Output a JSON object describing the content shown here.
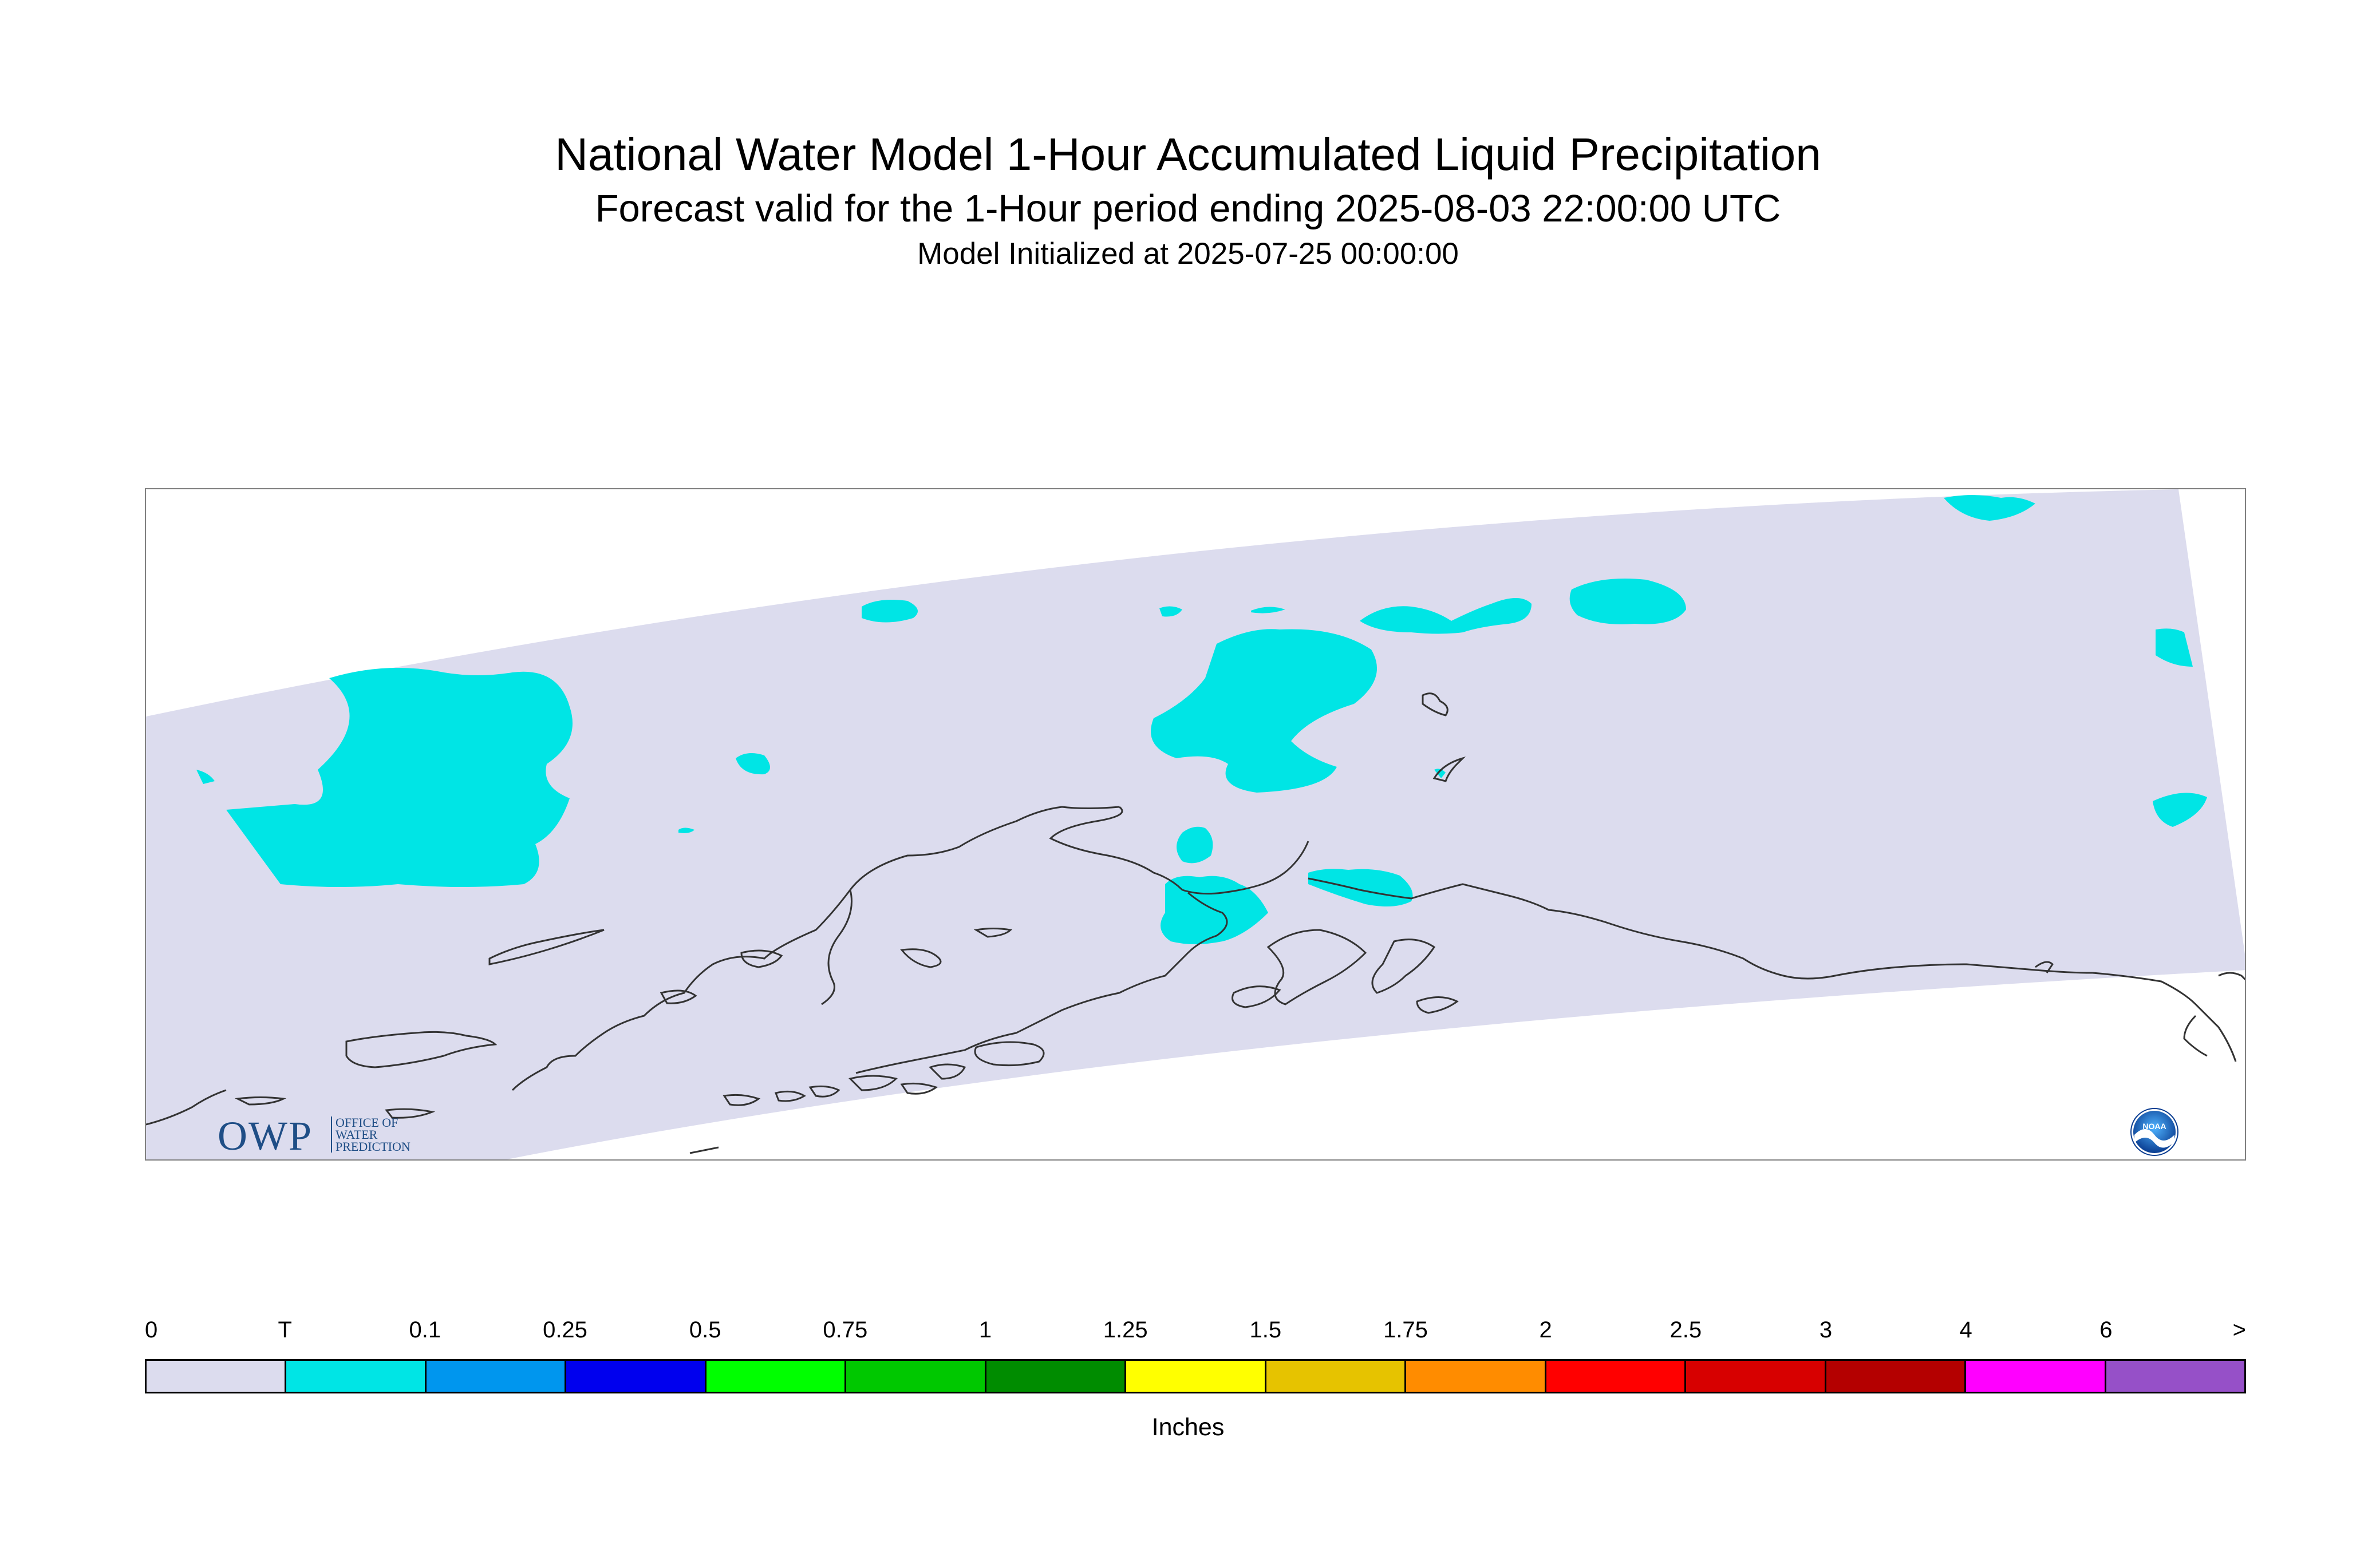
{
  "header": {
    "title": "National Water Model 1-Hour Accumulated Liquid Precipitation",
    "subtitle": "Forecast valid for the 1-Hour period ending 2025-08-03 22:00:00 UTC",
    "init": "Model Initialized at 2025-07-25 00:00:00"
  },
  "logos": {
    "owp_letters": "OWP",
    "owp_line1": "OFFICE OF",
    "owp_line2": "WATER",
    "owp_line3": "PREDICTION",
    "noaa": "NOAA"
  },
  "map": {
    "region": "Alaska",
    "domain_color": "#dcdcee",
    "trace_color": "#00e5e5",
    "coast_color": "#333333"
  },
  "legend": {
    "labels": [
      "0",
      "T",
      "0.1",
      "0.25",
      "0.5",
      "0.75",
      "1",
      "1.25",
      "1.5",
      "1.75",
      "2",
      "2.5",
      "3",
      "4",
      "6",
      ">"
    ],
    "colors": [
      "#dcdcee",
      "#00e5e5",
      "#0096ee",
      "#0000ee",
      "#00ff00",
      "#00c800",
      "#008c00",
      "#ffff00",
      "#e6c300",
      "#ff8c00",
      "#ff0000",
      "#d70000",
      "#b40000",
      "#ff00ff",
      "#9650c8"
    ],
    "units": "Inches"
  }
}
